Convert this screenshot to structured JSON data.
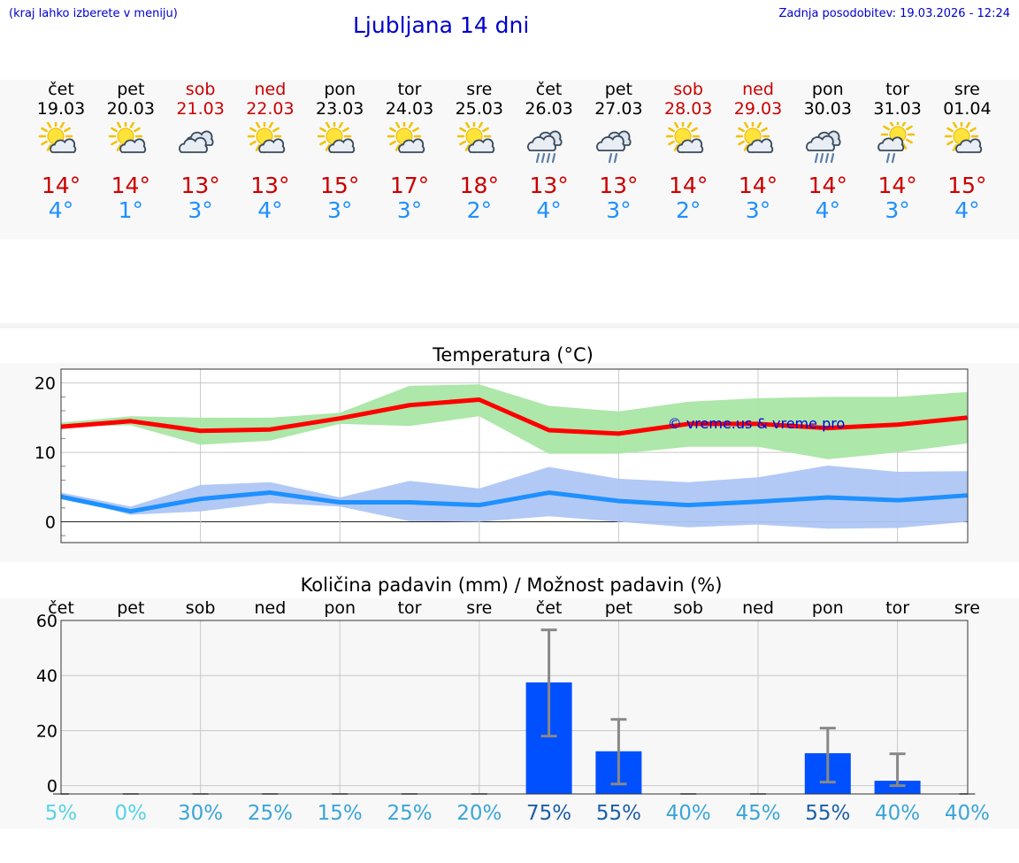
{
  "header": {
    "hint": "(kraj lahko izberete v meniju)",
    "title": "Ljubljana 14 dni",
    "updated": "Zadnja posodobitev: 19.03.2026 - 12:24"
  },
  "days": [
    {
      "name": "čet",
      "date": "19.03",
      "weekend": false,
      "icon": "sun-cloud-icon",
      "tmax": "14°",
      "tmin": "4°"
    },
    {
      "name": "pet",
      "date": "20.03",
      "weekend": false,
      "icon": "sun-cloud-icon",
      "tmax": "14°",
      "tmin": "1°"
    },
    {
      "name": "sob",
      "date": "21.03",
      "weekend": true,
      "icon": "clouds-icon",
      "tmax": "13°",
      "tmin": "3°"
    },
    {
      "name": "ned",
      "date": "22.03",
      "weekend": true,
      "icon": "sun-cloud-icon",
      "tmax": "13°",
      "tmin": "4°"
    },
    {
      "name": "pon",
      "date": "23.03",
      "weekend": false,
      "icon": "sun-cloud-icon",
      "tmax": "15°",
      "tmin": "3°"
    },
    {
      "name": "tor",
      "date": "24.03",
      "weekend": false,
      "icon": "sun-cloud-icon",
      "tmax": "17°",
      "tmin": "3°"
    },
    {
      "name": "sre",
      "date": "25.03",
      "weekend": false,
      "icon": "sun-cloud-icon",
      "tmax": "18°",
      "tmin": "2°"
    },
    {
      "name": "čet",
      "date": "26.03",
      "weekend": false,
      "icon": "heavy-rain-icon",
      "tmax": "13°",
      "tmin": "4°"
    },
    {
      "name": "pet",
      "date": "27.03",
      "weekend": false,
      "icon": "rain-icon",
      "tmax": "13°",
      "tmin": "3°"
    },
    {
      "name": "sob",
      "date": "28.03",
      "weekend": true,
      "icon": "sun-cloud-icon",
      "tmax": "14°",
      "tmin": "2°"
    },
    {
      "name": "ned",
      "date": "29.03",
      "weekend": true,
      "icon": "sun-cloud-icon",
      "tmax": "14°",
      "tmin": "3°"
    },
    {
      "name": "pon",
      "date": "30.03",
      "weekend": false,
      "icon": "heavy-rain-icon",
      "tmax": "14°",
      "tmin": "4°"
    },
    {
      "name": "tor",
      "date": "31.03",
      "weekend": false,
      "icon": "sun-rain-icon",
      "tmax": "14°",
      "tmin": "3°"
    },
    {
      "name": "sre",
      "date": "01.04",
      "weekend": false,
      "icon": "sun-cloud-icon",
      "tmax": "15°",
      "tmin": "4°"
    }
  ],
  "colors": {
    "title": "#0000cc",
    "max_line": "#ff0000",
    "min_line": "#1e90ff",
    "max_band": "#a9e6a4",
    "min_band": "#aec6f6",
    "bar": "#0050ff",
    "error": "#888888",
    "weekend": "#cc0000"
  },
  "chart_data": [
    {
      "type": "line",
      "title": "Temperatura (°C)",
      "watermark": "© vreme.us & vreme.pro",
      "ylim": [
        -3,
        22
      ],
      "yticks": [
        0,
        10,
        20
      ],
      "x": [
        0,
        1,
        2,
        3,
        4,
        5,
        6,
        7,
        8,
        9,
        10,
        11,
        12,
        13
      ],
      "series": [
        {
          "name": "max",
          "values": [
            13.7,
            14.5,
            13.1,
            13.3,
            14.9,
            16.8,
            17.6,
            13.2,
            12.7,
            14.1,
            14.1,
            13.5,
            14.0,
            15.0
          ],
          "band_low": [
            13.7,
            13.9,
            11.1,
            11.7,
            14.1,
            13.8,
            15.2,
            9.8,
            9.8,
            10.8,
            10.8,
            9.0,
            10.0,
            11.3
          ],
          "band_high": [
            14.3,
            15.2,
            15.0,
            15.0,
            15.7,
            19.6,
            19.8,
            16.7,
            15.9,
            17.3,
            17.8,
            18.0,
            18.0,
            18.7
          ]
        },
        {
          "name": "min",
          "values": [
            3.6,
            1.5,
            3.3,
            4.2,
            2.8,
            2.8,
            2.4,
            4.2,
            3.0,
            2.4,
            2.9,
            3.5,
            3.1,
            3.8
          ],
          "band_low": [
            3.6,
            1.0,
            1.5,
            2.7,
            2.2,
            0.1,
            0.0,
            0.8,
            0.0,
            -0.8,
            -0.4,
            -1.0,
            -0.9,
            0.0
          ],
          "band_high": [
            4.2,
            2.2,
            5.3,
            5.7,
            3.5,
            5.9,
            4.8,
            7.9,
            6.2,
            5.7,
            6.4,
            8.1,
            7.2,
            7.3
          ]
        }
      ]
    },
    {
      "type": "bar",
      "title": "Količina padavin (mm) / Možnost padavin (%)",
      "ylim": [
        -3,
        60
      ],
      "yticks": [
        0,
        20,
        40,
        60
      ],
      "categories": [
        "čet",
        "pet",
        "sob",
        "ned",
        "pon",
        "tor",
        "sre",
        "čet",
        "pet",
        "sob",
        "ned",
        "pon",
        "tor",
        "sre"
      ],
      "values": [
        0,
        0,
        0,
        0,
        0,
        0,
        0,
        37.5,
        12.5,
        0,
        0,
        11.8,
        1.8,
        0
      ],
      "err_low": [
        0,
        0,
        0,
        0,
        0,
        0,
        0,
        18,
        0.6,
        0,
        0,
        1.3,
        0,
        0
      ],
      "err_high": [
        0,
        0,
        0,
        0,
        0,
        0,
        0,
        56.6,
        24.1,
        0,
        0,
        20.9,
        11.6,
        0
      ],
      "probability": [
        "5%",
        "0%",
        "30%",
        "25%",
        "15%",
        "25%",
        "20%",
        "75%",
        "55%",
        "40%",
        "45%",
        "55%",
        "40%",
        "40%"
      ],
      "probability_colors": [
        "#55d4e6",
        "#55d4e6",
        "#3aa5d8",
        "#3aa5d8",
        "#3aa5d8",
        "#3aa5d8",
        "#3aa5d8",
        "#1c5fa8",
        "#1c5fa8",
        "#3aa5d8",
        "#3aa5d8",
        "#1c5fa8",
        "#3aa5d8",
        "#3aa5d8"
      ]
    }
  ]
}
